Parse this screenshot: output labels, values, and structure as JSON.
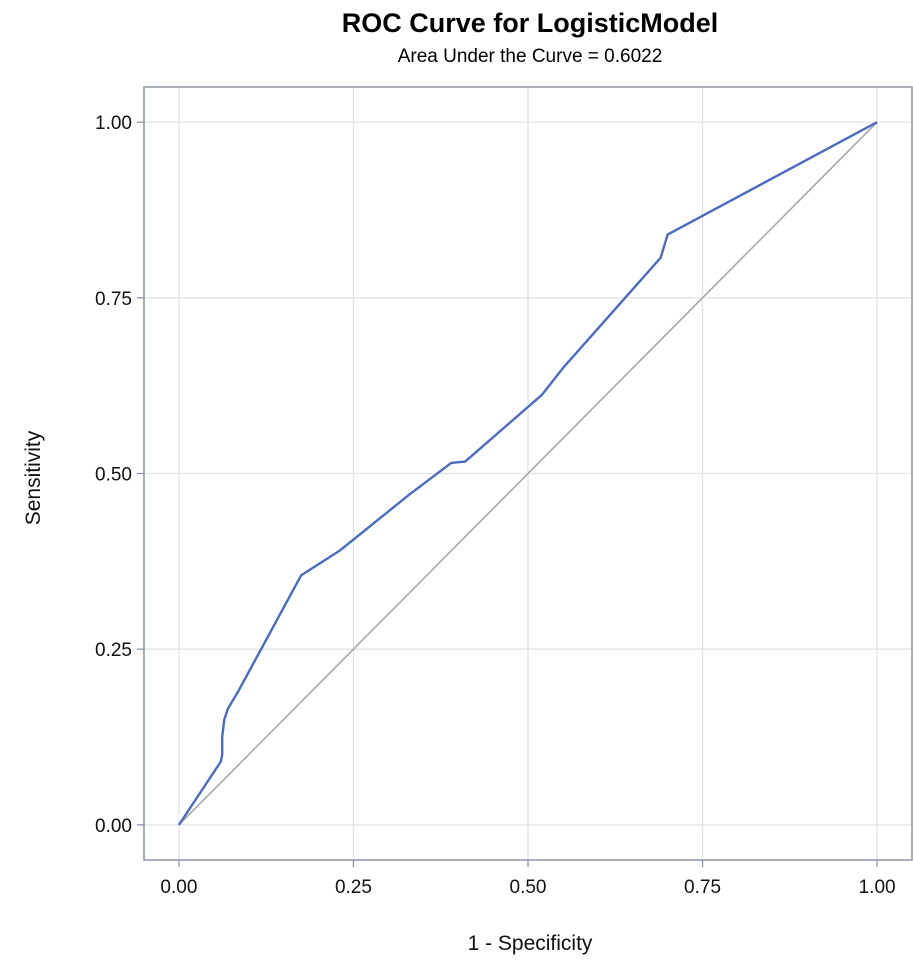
{
  "chart_data": {
    "type": "line",
    "title": "ROC Curve for LogisticModel",
    "subtitle": "Area Under the Curve = 0.6022",
    "xlabel": "1 - Specificity",
    "ylabel": "Sensitivity",
    "xlim": [
      -0.05,
      1.05
    ],
    "ylim": [
      -0.05,
      1.05
    ],
    "xticks": [
      "0.00",
      "0.25",
      "0.50",
      "0.75",
      "1.00"
    ],
    "yticks": [
      "0.00",
      "0.25",
      "0.50",
      "0.75",
      "1.00"
    ],
    "grid": true,
    "legend": "none",
    "colors": {
      "roc": "#4a6bbf",
      "diagonal": "#a8a8a8",
      "grid": "#e3e3e3",
      "frame": "#8a93a3"
    },
    "series": [
      {
        "points": [
          [
            0.0,
            0.0
          ],
          [
            0.06,
            0.09
          ],
          [
            0.062,
            0.1
          ],
          [
            0.062,
            0.125
          ],
          [
            0.065,
            0.15
          ],
          [
            0.07,
            0.165
          ],
          [
            0.085,
            0.19
          ],
          [
            0.175,
            0.355
          ],
          [
            0.23,
            0.39
          ],
          [
            0.33,
            0.47
          ],
          [
            0.39,
            0.515
          ],
          [
            0.41,
            0.517
          ],
          [
            0.52,
            0.612
          ],
          [
            0.55,
            0.65
          ],
          [
            0.69,
            0.807
          ],
          [
            0.7,
            0.84
          ],
          [
            1.0,
            1.0
          ]
        ]
      },
      {
        "points": [
          [
            0.0,
            0.0
          ],
          [
            1.0,
            1.0
          ]
        ]
      }
    ]
  }
}
